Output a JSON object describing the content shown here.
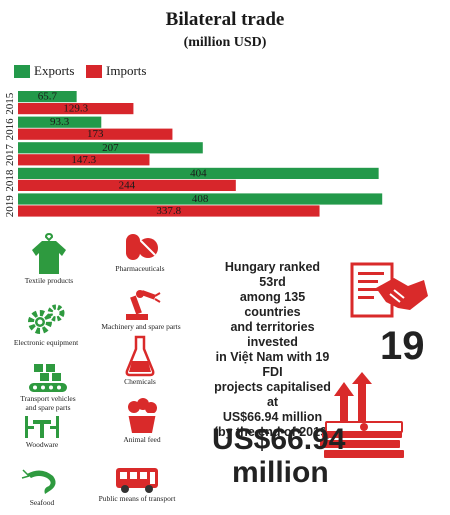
{
  "colors": {
    "exports": "#23994a",
    "imports": "#d7262b",
    "icon_green": "#2e9a3f",
    "icon_red": "#d92a2a",
    "text": "#1a1a1a"
  },
  "chart_data": {
    "type": "bar",
    "orientation": "horizontal",
    "title": "Bilateral trade",
    "subtitle": "(million USD)",
    "categories": [
      "2015",
      "2016",
      "2017",
      "2018",
      "2019"
    ],
    "series": [
      {
        "name": "Exports",
        "values": [
          65.7,
          93.3,
          207,
          404,
          408
        ],
        "labels": [
          "65.7",
          "93.3",
          "207",
          "404",
          "408"
        ]
      },
      {
        "name": "Imports",
        "values": [
          129.3,
          173,
          147.3,
          244,
          337.8
        ],
        "labels": [
          "129.3",
          "173",
          "147.3",
          "244",
          "337.8"
        ]
      }
    ],
    "xlim": [
      0,
      410
    ],
    "legend": "top-left",
    "grid": false
  },
  "products": [
    {
      "label": "Textile products",
      "icon": "shirt-icon"
    },
    {
      "label": "Pharmaceuticals",
      "icon": "pills-icon"
    },
    {
      "label": "Electronic equipment",
      "icon": "gears-icon"
    },
    {
      "label": "Machinery and spare parts",
      "icon": "robot-arm-icon"
    },
    {
      "label": "Transport vehicles",
      "label2": "and spare parts",
      "icon": "conveyor-icon"
    },
    {
      "label": "Chemicals",
      "icon": "flask-icon"
    },
    {
      "label": "Woodware",
      "icon": "table-chairs-icon"
    },
    {
      "label": "Animal feed",
      "icon": "feed-bucket-icon"
    },
    {
      "label": "Seafood",
      "icon": "shrimp-icon"
    },
    {
      "label": "Public means of transport",
      "icon": "bus-icon"
    }
  ],
  "investment": {
    "rank_lines": [
      "Hungary ranked 53rd",
      "among 135 countries",
      "and territories invested",
      "in Việt Nam with 19 FDI",
      "projects capitalised at",
      "US$66.94 million",
      "(by the end of 2019)"
    ],
    "project_count": "19",
    "capital_value": "US$66.94",
    "capital_unit": "million"
  }
}
